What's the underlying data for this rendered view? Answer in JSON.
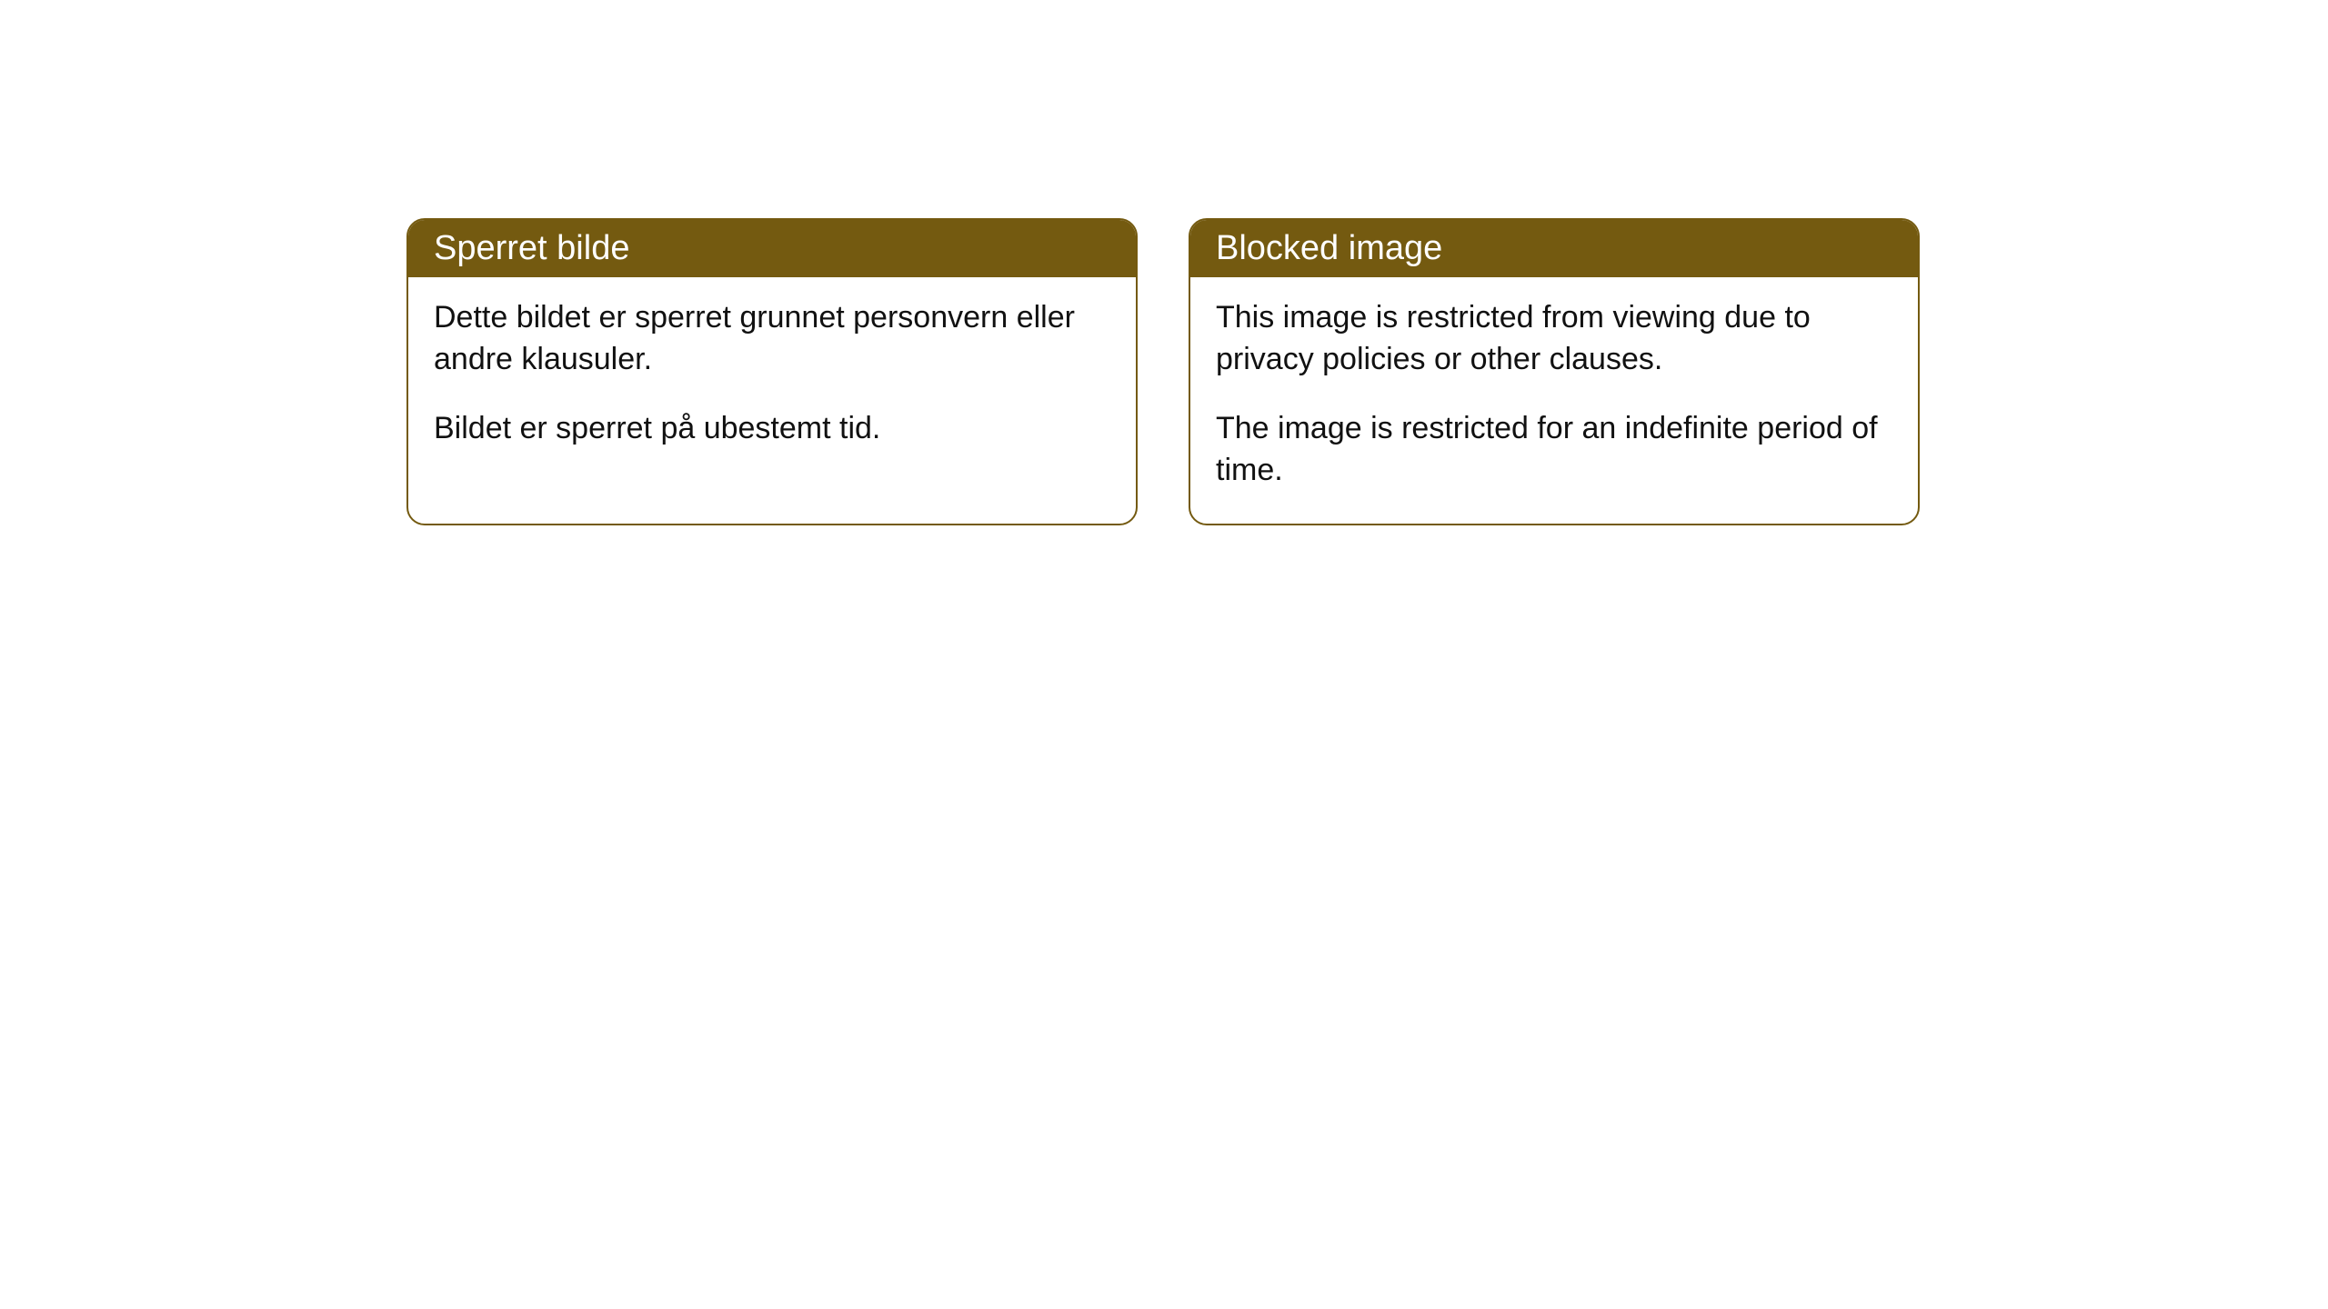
{
  "cards": [
    {
      "title": "Sperret bilde",
      "paragraph1": "Dette bildet er sperret grunnet personvern eller andre klausuler.",
      "paragraph2": "Bildet er sperret på ubestemt tid."
    },
    {
      "title": "Blocked image",
      "paragraph1": "This image is restricted from viewing due to privacy policies or other clauses.",
      "paragraph2": "The image is restricted for an indefinite period of time."
    }
  ],
  "style": {
    "header_bg_color": "#745a10",
    "header_text_color": "#ffffff",
    "border_color": "#745a10",
    "body_text_color": "#111111",
    "background_color": "#ffffff",
    "border_radius": 20,
    "header_fontsize": 38,
    "body_fontsize": 34
  }
}
